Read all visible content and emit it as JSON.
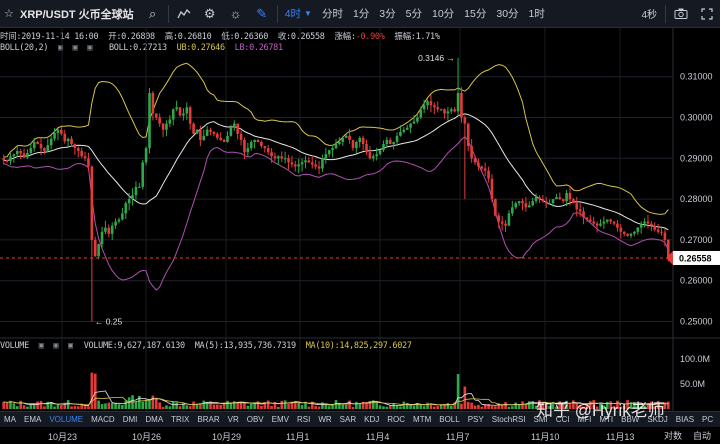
{
  "toolbar": {
    "title": "XRP/USDT 火币全球站",
    "active_period": "4时",
    "periods": [
      "分时",
      "1分",
      "3分",
      "5分",
      "10分",
      "15分",
      "30分",
      "1时"
    ],
    "right_label": "4秒"
  },
  "info": {
    "time": "时间:2019-11-14 16:00",
    "open": "开:0.26808",
    "high": "高:0.26810",
    "low": "低:0.26360",
    "close": "收:0.26558",
    "change_label": "涨幅:",
    "change_value": "-0.90%",
    "amplitude": "振幅:1.71%"
  },
  "boll": {
    "label": "BOLL(20,2)",
    "mid": "BOLL:0.27213",
    "ub": "UB:0.27646",
    "lb": "LB:0.26781"
  },
  "volume": {
    "label": "VOLUME",
    "value": "VOLUME:9,627,187.6130",
    "ma5": "MA(5):13,935,736.7319",
    "ma10": "MA(10):14,825,297.6027",
    "axis": [
      "100.0M",
      "50.0M"
    ]
  },
  "price_axis": [
    "0.31000",
    "0.30000",
    "0.29000",
    "0.28000",
    "0.27000",
    "0.26000",
    "0.25000"
  ],
  "current_price": "0.26558",
  "annotations": {
    "high": "0.3146 →",
    "low": "← 0.25"
  },
  "indicators": [
    "MA",
    "EMA",
    "VOLUME",
    "MACD",
    "DMI",
    "DMA",
    "TRIX",
    "BRAR",
    "VR",
    "OBV",
    "EMV",
    "RSI",
    "WR",
    "SAR",
    "KDJ",
    "ROC",
    "MTM",
    "BOLL",
    "PSY",
    "StochRSI",
    "SMI",
    "CCI",
    "MFI",
    "MTI",
    "BBW",
    "SKDJ",
    "BIAS",
    "PC"
  ],
  "active_indicator": "VOLUME",
  "dates": [
    "10月23",
    "10月26",
    "10月29",
    "11月1",
    "11月4",
    "11月7",
    "11月10",
    "11月13"
  ],
  "corner": {
    "log": "对数",
    "auto": "自动"
  },
  "watermark": "知乎 @Hyrik老师",
  "colors": {
    "up": "#2ea84a",
    "down": "#e63a3a",
    "boll_mid": "#e8e8e8",
    "boll_ub": "#d8c44a",
    "boll_lb": "#b050b0",
    "accent": "#3b82f6"
  },
  "chart_data": {
    "type": "candlestick",
    "price_range": [
      0.2445,
      0.3185
    ],
    "close_series": [
      0.2895,
      0.2893,
      0.2905,
      0.291,
      0.2918,
      0.2912,
      0.2902,
      0.2913,
      0.2925,
      0.294,
      0.2935,
      0.2925,
      0.2918,
      0.2932,
      0.2948,
      0.2962,
      0.297,
      0.296,
      0.2942,
      0.2948,
      0.2935,
      0.2925,
      0.2918,
      0.2905,
      0.29,
      0.288,
      0.27,
      0.266,
      0.269,
      0.272,
      0.273,
      0.2715,
      0.2735,
      0.2745,
      0.275,
      0.2765,
      0.279,
      0.28,
      0.281,
      0.283,
      0.283,
      0.289,
      0.2925,
      0.306,
      0.301,
      0.3,
      0.2985,
      0.297,
      0.2985,
      0.2995,
      0.302,
      0.3025,
      0.3005,
      0.301,
      0.3025,
      0.2985,
      0.296,
      0.297,
      0.2945,
      0.2955,
      0.297,
      0.2965,
      0.296,
      0.295,
      0.2945,
      0.294,
      0.2955,
      0.2975,
      0.2985,
      0.296,
      0.2945,
      0.2915,
      0.2925,
      0.294,
      0.2945,
      0.294,
      0.293,
      0.2925,
      0.2915,
      0.2905,
      0.29,
      0.2905,
      0.29,
      0.29,
      0.289,
      0.2885,
      0.288,
      0.2885,
      0.289,
      0.2895,
      0.289,
      0.2885,
      0.288,
      0.2875,
      0.29,
      0.291,
      0.292,
      0.2925,
      0.2935,
      0.294,
      0.295,
      0.2955,
      0.2945,
      0.2925,
      0.294,
      0.295,
      0.2935,
      0.2915,
      0.29,
      0.2905,
      0.291,
      0.292,
      0.2935,
      0.2945,
      0.2935,
      0.294,
      0.2955,
      0.2965,
      0.297,
      0.2975,
      0.2985,
      0.299,
      0.3,
      0.302,
      0.303,
      0.304,
      0.303,
      0.3025,
      0.302,
      0.302,
      0.301,
      0.3015,
      0.302,
      0.3015,
      0.306,
      0.3,
      0.2985,
      0.293,
      0.29,
      0.289,
      0.288,
      0.2875,
      0.287,
      0.285,
      0.28,
      0.276,
      0.2745,
      0.274,
      0.2735,
      0.2765,
      0.278,
      0.279,
      0.2795,
      0.279,
      0.278,
      0.2785,
      0.2795,
      0.2805,
      0.28,
      0.2795,
      0.279,
      0.279,
      0.28,
      0.2805,
      0.28,
      0.2795,
      0.2815,
      0.28,
      0.279,
      0.2775,
      0.277,
      0.2755,
      0.275,
      0.2745,
      0.274,
      0.2735,
      0.274,
      0.2745,
      0.275,
      0.2745,
      0.274,
      0.273,
      0.272,
      0.2715,
      0.271,
      0.2715,
      0.272,
      0.273,
      0.274,
      0.2745,
      0.274,
      0.2735,
      0.2725,
      0.272,
      0.2718,
      0.27,
      0.2656
    ]
  }
}
